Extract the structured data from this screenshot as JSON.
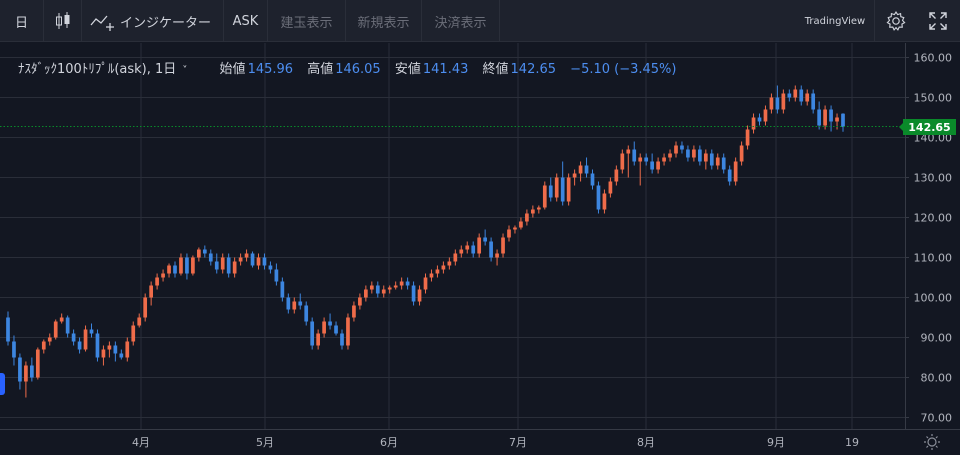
{
  "toolbar": {
    "interval": "日",
    "indicators_label": "インジケーター",
    "ask_label": "ASK",
    "buy_label": "建玉表示",
    "new_label": "新規表示",
    "settle_label": "決済表示",
    "brand": "TradingView"
  },
  "legend": {
    "symbol": "ﾅｽﾀﾞｯｸ100ﾄﾘﾌﾟﾙ(ask), 1日",
    "open_label": "始値",
    "open": "145.96",
    "high_label": "高値",
    "high": "146.05",
    "low_label": "安値",
    "low": "141.43",
    "close_label": "終値",
    "close": "142.65",
    "change": "−5.10 (−3.45%)"
  },
  "colors": {
    "background": "#131722",
    "up": "#ef6c4a",
    "down": "#3d86e0",
    "grid": "#2a2e39",
    "last_price": "#0a8a2a"
  },
  "chart_data": {
    "type": "candlestick",
    "y_ticks": [
      "160.00",
      "150.00",
      "140.00",
      "130.00",
      "120.00",
      "110.00",
      "100.00",
      "90.00",
      "80.00",
      "70.00"
    ],
    "ylim": [
      67,
      162
    ],
    "x_ticks": [
      "4月",
      "5月",
      "6月",
      "7月",
      "8月",
      "9月",
      "19"
    ],
    "last_price": "142.65",
    "grid": true,
    "candles": [
      [
        95,
        96.5,
        88,
        89
      ],
      [
        89,
        90.5,
        83,
        85
      ],
      [
        85,
        86,
        77,
        79
      ],
      [
        79,
        84,
        75,
        83
      ],
      [
        83,
        85,
        79,
        80
      ],
      [
        80,
        87.5,
        79.5,
        87
      ],
      [
        87,
        89.5,
        86,
        89
      ],
      [
        89,
        91,
        88,
        90
      ],
      [
        90,
        94.5,
        89.5,
        94
      ],
      [
        94,
        96,
        93.5,
        95
      ],
      [
        95,
        95.5,
        90,
        91
      ],
      [
        91,
        92,
        88,
        89
      ],
      [
        89,
        90,
        86,
        87
      ],
      [
        87,
        93,
        86.5,
        92
      ],
      [
        92,
        93.5,
        90,
        91
      ],
      [
        91,
        92,
        84,
        85
      ],
      [
        85,
        88,
        83,
        87
      ],
      [
        87,
        89,
        85,
        88
      ],
      [
        88,
        89,
        84,
        86
      ],
      [
        86,
        87,
        84.5,
        85
      ],
      [
        85,
        90,
        84,
        89
      ],
      [
        89,
        94,
        88,
        93
      ],
      [
        93,
        96,
        92.5,
        95
      ],
      [
        95,
        101,
        94,
        100
      ],
      [
        100,
        104,
        98,
        103
      ],
      [
        103,
        106,
        102,
        105
      ],
      [
        105,
        107,
        104,
        106
      ],
      [
        106,
        108.5,
        105,
        108
      ],
      [
        108,
        109,
        105,
        106
      ],
      [
        106,
        111,
        105.5,
        110
      ],
      [
        110,
        111,
        104.5,
        106
      ],
      [
        106,
        110.5,
        105.5,
        110
      ],
      [
        110,
        112.5,
        109,
        112
      ],
      [
        112,
        113,
        110,
        111
      ],
      [
        111,
        112,
        108,
        109
      ],
      [
        109,
        111,
        106,
        107
      ],
      [
        107,
        111,
        106,
        110
      ],
      [
        110,
        111,
        105,
        106
      ],
      [
        106,
        110,
        105,
        109
      ],
      [
        109,
        111,
        108,
        110
      ],
      [
        110,
        112,
        109,
        111
      ],
      [
        111,
        111.5,
        107.5,
        108
      ],
      [
        108,
        111,
        107,
        110
      ],
      [
        110,
        111,
        107,
        108
      ],
      [
        108,
        109,
        106,
        107
      ],
      [
        107,
        108.5,
        103,
        104
      ],
      [
        104,
        105,
        99,
        100
      ],
      [
        100,
        101,
        96,
        97
      ],
      [
        97,
        100,
        96,
        99
      ],
      [
        99,
        101,
        97,
        98
      ],
      [
        98,
        99,
        93,
        94
      ],
      [
        94,
        95,
        87,
        88
      ],
      [
        88,
        92,
        87,
        91
      ],
      [
        91,
        95,
        90,
        94
      ],
      [
        94,
        96,
        92,
        93
      ],
      [
        93,
        94,
        90.5,
        91
      ],
      [
        91,
        92,
        87,
        88
      ],
      [
        88,
        96,
        87,
        95
      ],
      [
        95,
        99,
        94,
        98
      ],
      [
        98,
        101,
        97,
        100
      ],
      [
        100,
        103,
        99,
        102
      ],
      [
        102,
        104,
        101,
        103
      ],
      [
        103,
        104,
        100,
        101
      ],
      [
        101,
        103,
        100,
        102
      ],
      [
        102,
        103,
        101,
        102.5
      ],
      [
        102.5,
        104,
        102,
        103
      ],
      [
        103,
        105,
        102,
        104
      ],
      [
        104,
        105,
        102,
        103
      ],
      [
        103,
        104,
        98,
        99
      ],
      [
        99,
        103,
        98,
        102
      ],
      [
        102,
        106,
        101,
        105
      ],
      [
        105,
        107,
        104,
        106
      ],
      [
        106,
        108,
        105,
        107
      ],
      [
        107,
        109,
        106,
        108
      ],
      [
        108,
        110,
        107,
        109
      ],
      [
        109,
        112,
        108,
        111
      ],
      [
        111,
        113,
        110,
        112
      ],
      [
        112,
        114,
        111,
        113
      ],
      [
        113,
        114,
        110,
        111
      ],
      [
        111,
        116,
        110,
        115
      ],
      [
        115,
        117,
        113,
        114
      ],
      [
        114,
        115,
        109,
        110
      ],
      [
        110,
        112,
        108,
        111
      ],
      [
        111,
        116,
        110,
        115
      ],
      [
        115,
        118,
        114,
        117
      ],
      [
        117,
        118,
        116,
        117.5
      ],
      [
        117.5,
        120,
        117,
        119
      ],
      [
        119,
        122,
        118,
        121
      ],
      [
        121,
        123,
        120,
        122
      ],
      [
        122,
        123,
        121,
        122.5
      ],
      [
        122.5,
        129,
        122,
        128
      ],
      [
        128,
        130,
        124,
        125
      ],
      [
        125,
        131,
        124,
        130
      ],
      [
        130,
        134,
        123,
        124
      ],
      [
        124,
        131,
        123,
        130
      ],
      [
        130,
        132,
        128,
        131
      ],
      [
        131,
        134,
        129,
        133
      ],
      [
        133,
        135,
        130,
        131
      ],
      [
        131,
        132,
        127,
        128
      ],
      [
        128,
        129,
        121,
        122
      ],
      [
        122,
        127,
        121,
        126
      ],
      [
        126,
        130,
        125,
        129
      ],
      [
        129,
        133,
        128,
        132
      ],
      [
        132,
        137,
        131,
        136
      ],
      [
        136,
        138,
        130,
        137
      ],
      [
        137,
        139,
        133,
        134
      ],
      [
        134,
        136,
        128,
        135
      ],
      [
        135,
        136,
        133,
        134
      ],
      [
        134,
        136,
        131,
        132
      ],
      [
        132,
        135,
        131,
        134
      ],
      [
        134,
        136,
        133,
        135
      ],
      [
        135,
        137,
        134,
        136
      ],
      [
        136,
        139,
        135,
        138
      ],
      [
        138,
        139,
        136,
        137
      ],
      [
        137,
        138,
        134,
        135
      ],
      [
        135,
        138,
        134,
        137
      ],
      [
        137,
        138,
        133,
        134
      ],
      [
        134,
        137,
        132,
        136
      ],
      [
        136,
        137,
        132,
        133
      ],
      [
        133,
        136,
        132,
        135
      ],
      [
        135,
        136,
        131,
        132
      ],
      [
        132,
        133,
        128,
        129
      ],
      [
        129,
        135,
        128,
        134
      ],
      [
        134,
        139,
        133,
        138
      ],
      [
        138,
        143,
        137,
        142
      ],
      [
        142,
        146,
        141,
        145
      ],
      [
        145,
        146,
        143,
        144
      ],
      [
        144,
        148,
        143,
        147
      ],
      [
        147,
        151,
        146,
        150
      ],
      [
        150,
        153,
        146,
        147
      ],
      [
        147,
        152,
        146,
        151
      ],
      [
        151,
        152,
        149,
        150
      ],
      [
        150,
        153,
        149,
        152
      ],
      [
        152,
        153,
        148,
        149
      ],
      [
        149,
        152,
        148,
        151
      ],
      [
        151,
        152,
        146,
        147
      ],
      [
        147,
        149,
        142,
        143
      ],
      [
        143,
        148,
        142,
        147
      ],
      [
        147,
        148,
        141.5,
        144
      ],
      [
        144,
        146,
        142,
        145
      ],
      [
        145.96,
        146.05,
        141.43,
        142.65
      ]
    ]
  }
}
